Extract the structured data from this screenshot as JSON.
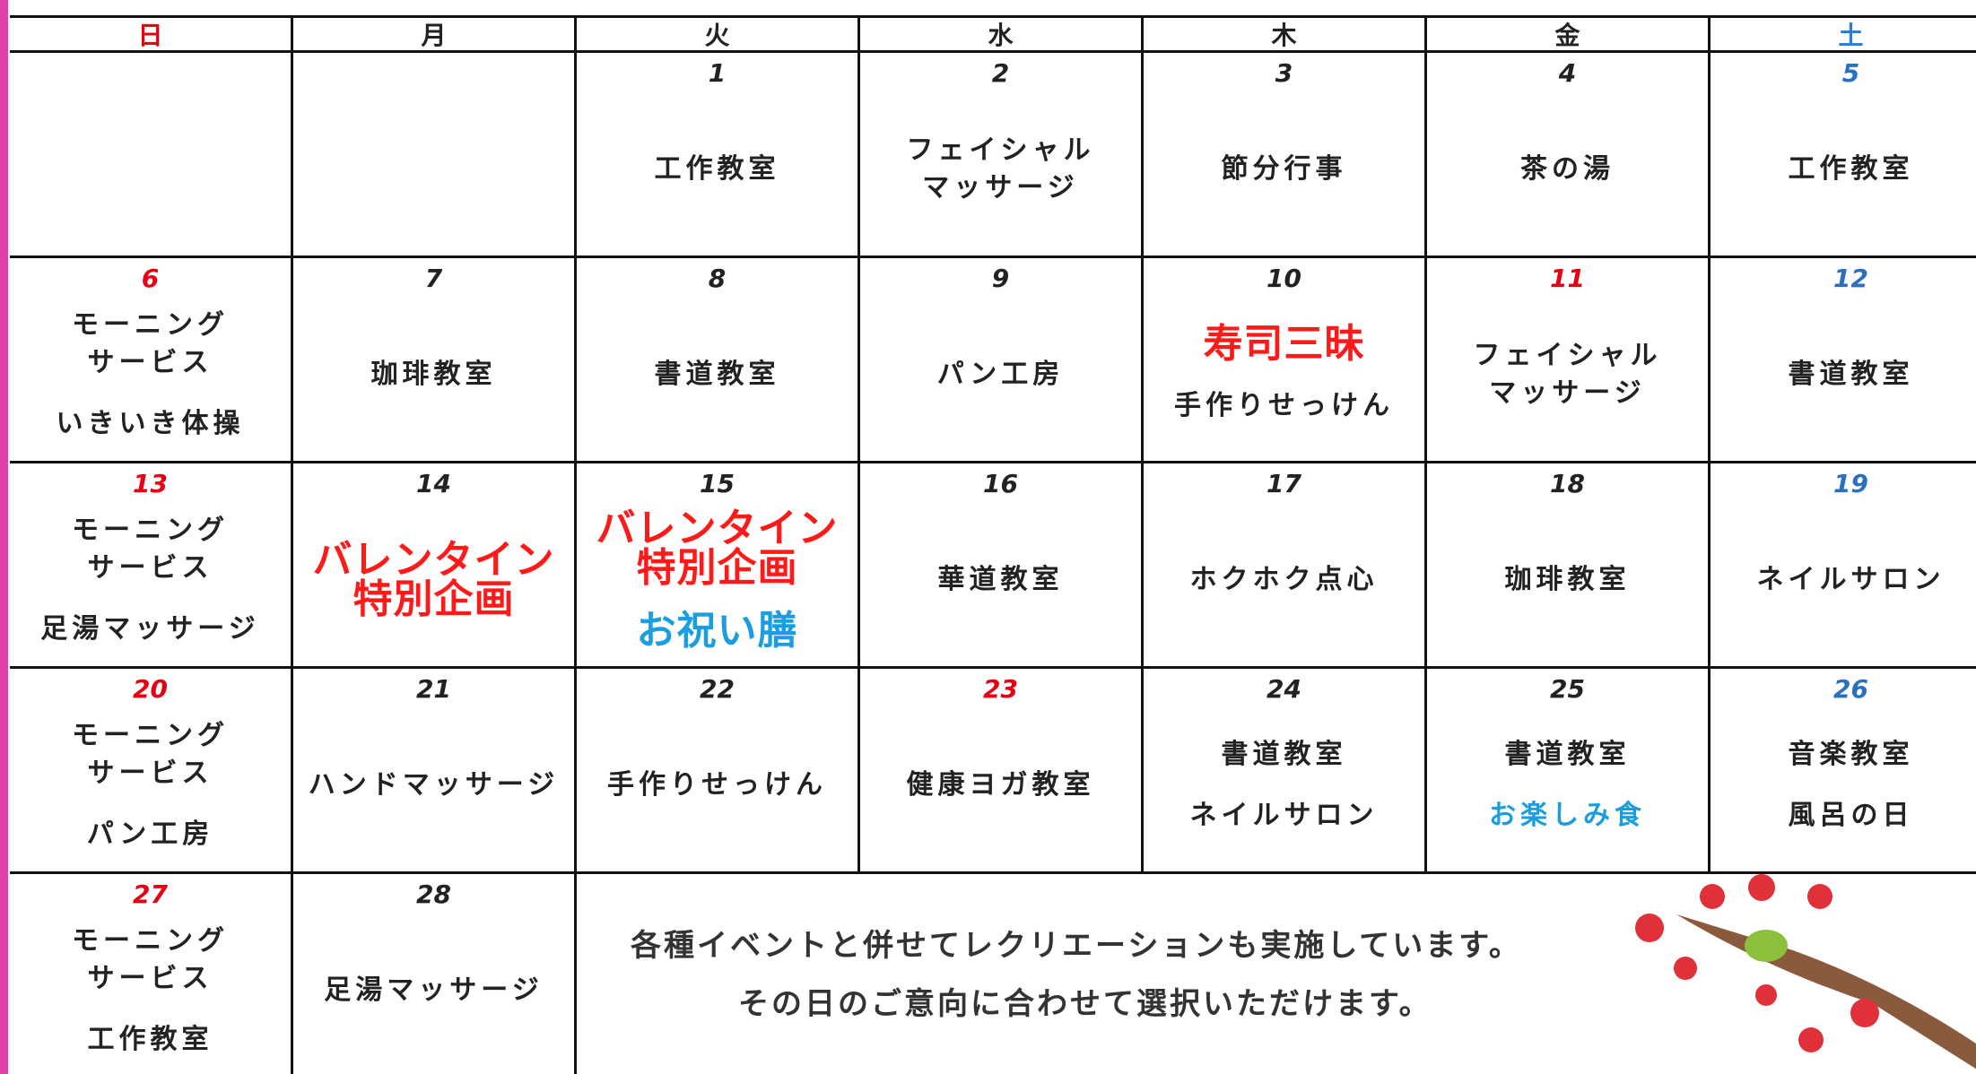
{
  "header": {
    "days": [
      "日",
      "月",
      "火",
      "水",
      "木",
      "金",
      "土"
    ],
    "colors": [
      "#e60012",
      null,
      null,
      null,
      null,
      null,
      "#2a7fd4"
    ]
  },
  "weeks": [
    [
      null,
      null,
      {
        "day": "1",
        "events": [
          {
            "lines": [
              "工作教室"
            ]
          }
        ]
      },
      {
        "day": "2",
        "events": [
          {
            "lines": [
              "フェイシャル",
              "マッサージ"
            ]
          }
        ]
      },
      {
        "day": "3",
        "events": [
          {
            "lines": [
              "節分行事"
            ]
          }
        ]
      },
      {
        "day": "4",
        "events": [
          {
            "lines": [
              "茶の湯"
            ]
          }
        ]
      },
      {
        "day": "5",
        "color": "#2a6fc0",
        "events": [
          {
            "lines": [
              "工作教室"
            ]
          }
        ]
      }
    ],
    [
      {
        "day": "6",
        "color": "#e60012",
        "events": [
          {
            "lines": [
              "モーニング",
              "サービス"
            ]
          },
          {
            "lines": [
              "いきいき体操"
            ]
          }
        ]
      },
      {
        "day": "7",
        "events": [
          {
            "lines": [
              "珈琲教室"
            ]
          }
        ]
      },
      {
        "day": "8",
        "events": [
          {
            "lines": [
              "書道教室"
            ]
          }
        ]
      },
      {
        "day": "9",
        "events": [
          {
            "lines": [
              "パン工房"
            ]
          }
        ]
      },
      {
        "day": "10",
        "events": [
          {
            "lines": [
              "寿司三昧"
            ],
            "color": "#ff1a1a",
            "emphasis": true
          },
          {
            "lines": [
              "手作りせっけん"
            ]
          }
        ]
      },
      {
        "day": "11",
        "color": "#e60012",
        "events": [
          {
            "lines": [
              "フェイシャル",
              "マッサージ"
            ]
          }
        ]
      },
      {
        "day": "12",
        "color": "#2a6fc0",
        "events": [
          {
            "lines": [
              "書道教室"
            ]
          }
        ]
      }
    ],
    [
      {
        "day": "13",
        "color": "#e60012",
        "events": [
          {
            "lines": [
              "モーニング",
              "サービス"
            ]
          },
          {
            "lines": [
              "足湯マッサージ"
            ]
          }
        ]
      },
      {
        "day": "14",
        "events": [
          {
            "lines": [
              "バレンタイン",
              "特別企画"
            ],
            "color": "#ff1a1a",
            "emphasis": true
          }
        ]
      },
      {
        "day": "15",
        "events": [
          {
            "lines": [
              "バレンタイン",
              "特別企画"
            ],
            "color": "#ff1a1a",
            "emphasis": true
          },
          {
            "lines": [
              "お祝い膳"
            ],
            "color": "#1a9ee0",
            "emphasis": true
          }
        ]
      },
      {
        "day": "16",
        "events": [
          {
            "lines": [
              "華道教室"
            ]
          }
        ]
      },
      {
        "day": "17",
        "events": [
          {
            "lines": [
              "ホクホク点心"
            ]
          }
        ]
      },
      {
        "day": "18",
        "events": [
          {
            "lines": [
              "珈琲教室"
            ]
          }
        ]
      },
      {
        "day": "19",
        "color": "#2a6fc0",
        "events": [
          {
            "lines": [
              "ネイルサロン"
            ]
          }
        ]
      }
    ],
    [
      {
        "day": "20",
        "color": "#e60012",
        "events": [
          {
            "lines": [
              "モーニング",
              "サービス"
            ]
          },
          {
            "lines": [
              "パン工房"
            ]
          }
        ]
      },
      {
        "day": "21",
        "events": [
          {
            "lines": [
              "ハンドマッサージ"
            ]
          }
        ]
      },
      {
        "day": "22",
        "events": [
          {
            "lines": [
              "手作りせっけん"
            ]
          }
        ]
      },
      {
        "day": "23",
        "color": "#e60012",
        "events": [
          {
            "lines": [
              "健康ヨガ教室"
            ]
          }
        ]
      },
      {
        "day": "24",
        "events": [
          {
            "lines": [
              "書道教室"
            ]
          },
          {
            "lines": [
              "ネイルサロン"
            ]
          }
        ]
      },
      {
        "day": "25",
        "events": [
          {
            "lines": [
              "書道教室"
            ]
          },
          {
            "lines": [
              "お楽しみ食"
            ],
            "color": "#1a9ee0"
          }
        ]
      },
      {
        "day": "26",
        "color": "#2a6fc0",
        "events": [
          {
            "lines": [
              "音楽教室"
            ]
          },
          {
            "lines": [
              "風呂の日"
            ]
          }
        ]
      }
    ],
    [
      {
        "day": "27",
        "color": "#e60012",
        "events": [
          {
            "lines": [
              "モーニング",
              "サービス"
            ]
          },
          {
            "lines": [
              "工作教室"
            ]
          }
        ]
      },
      {
        "day": "28",
        "events": [
          {
            "lines": [
              "足湯マッサージ"
            ]
          }
        ]
      }
    ]
  ],
  "note": [
    "各種イベントと併せてレクリエーションも実施しています。",
    "その日のご意向に合わせて選択いただけます。"
  ]
}
